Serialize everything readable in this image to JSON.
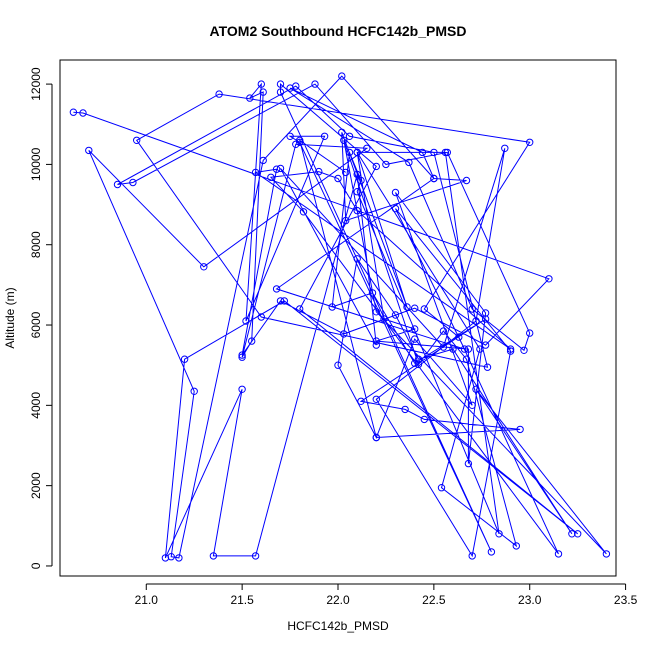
{
  "chart_data": {
    "type": "line",
    "title": "ATOM2 Southbound HCFC142b_PMSD",
    "xlabel": "HCFC142b_PMSD",
    "ylabel": "Altitude (m)",
    "xlim": [
      20.55,
      23.45
    ],
    "ylim": [
      -250,
      12600
    ],
    "x_ticks": [
      21.0,
      21.5,
      22.0,
      22.5,
      23.0,
      23.5
    ],
    "x_tick_labels": [
      "21.0",
      "21.5",
      "22.0",
      "22.5",
      "23.0",
      "23.5"
    ],
    "y_ticks": [
      0,
      2000,
      4000,
      6000,
      8000,
      10000,
      12000
    ],
    "y_tick_labels": [
      "0",
      "2000",
      "4000",
      "6000",
      "8000",
      "10000",
      "12000"
    ],
    "grid": false,
    "series_color": "#0000ff",
    "series": [
      {
        "x": [
          20.62,
          20.67,
          23.1,
          22.77,
          22.4,
          22.03,
          21.7,
          21.5,
          21.68,
          21.57,
          22.9,
          22.1,
          22.0,
          21.9,
          21.65,
          21.82,
          23.15,
          22.63,
          22.45,
          23.0,
          21.38,
          20.95,
          21.6,
          22.78,
          22.5,
          22.06,
          21.78,
          20.85,
          20.93,
          21.88,
          22.25,
          22.57,
          23.0,
          22.97,
          22.7,
          22.37,
          21.75,
          22.44,
          22.5,
          22.02,
          21.61,
          21.17,
          21.13,
          21.25,
          20.7,
          21.3,
          22.15,
          21.78,
          21.5,
          21.55,
          21.61,
          21.54,
          21.6,
          21.52,
          21.93,
          21.75,
          21.8,
          22.8,
          21.7,
          21.7,
          22.2,
          21.8,
          23.25,
          21.72,
          21.2,
          21.1,
          21.5,
          21.35,
          21.57,
          22.1,
          22.2,
          21.7,
          22.55,
          22.87,
          22.72,
          22.2,
          22.7,
          22.9,
          22.3,
          22.66,
          21.68,
          22.5,
          22.67,
          22.04,
          22.02,
          22.36,
          22.1,
          22.56,
          22.84,
          22.1,
          22.12,
          22.06,
          21.97,
          22.18,
          22.4,
          22.77,
          22.12,
          22.35,
          22.45,
          22.95,
          22.2,
          22.0,
          22.1,
          22.3,
          22.42,
          22.6,
          23.22,
          22.72,
          23.4,
          22.2,
          22.03,
          22.42,
          22.55,
          22.67,
          22.93,
          22.54,
          22.74,
          22.1,
          22.24,
          22.4,
          22.2,
          22.68,
          22.68,
          22.77,
          22.3,
          22.7,
          22.4,
          22.2,
          21.8,
          22.04
        ],
        "y": [
          11300,
          11280,
          7150,
          5500,
          6420,
          5780,
          6600,
          5250,
          9880,
          9800,
          5400,
          8850,
          9650,
          9820,
          9680,
          8820,
          300,
          5700,
          6400,
          10550,
          11750,
          10600,
          6200,
          4950,
          10300,
          10700,
          11950,
          9500,
          9550,
          12000,
          10000,
          10300,
          5800,
          5370,
          6400,
          10050,
          11900,
          10300,
          9650,
          12200,
          10100,
          200,
          230,
          4350,
          10350,
          7450,
          10400,
          10500,
          5200,
          5600,
          11800,
          11650,
          12000,
          6100,
          10700,
          10700,
          10550,
          350,
          11800,
          12000,
          9950,
          6400,
          800,
          6600,
          5150,
          200,
          4400,
          250,
          250,
          9750,
          5500,
          9900,
          5450,
          10400,
          6100,
          4150,
          250,
          5350,
          8900,
          5400,
          6900,
          9650,
          9600,
          8600,
          10800,
          6450,
          10300,
          10300,
          800,
          9320,
          9600,
          10300,
          6450,
          6800,
          5050,
          6150,
          4100,
          3900,
          3650,
          3400,
          3200,
          5000,
          7650,
          6250,
          5150,
          5400,
          800,
          4400,
          300,
          6330,
          10600,
          5020,
          5850,
          5150,
          500,
          1950,
          5400,
          10300,
          6150,
          5900,
          5600,
          5400,
          2550,
          6300,
          9300,
          4000,
          5650,
          3200,
          10600,
          9800
        ]
      }
    ]
  }
}
